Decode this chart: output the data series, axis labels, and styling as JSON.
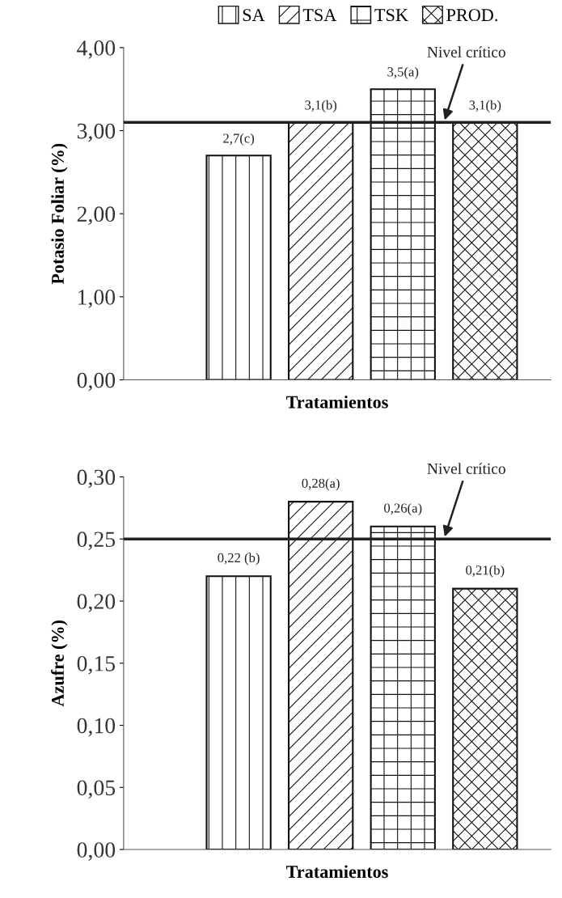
{
  "chart_data": [
    {
      "type": "bar",
      "ylabel": "Potasio Foliar (%)",
      "xlabel": "Tratamientos",
      "categories": [
        "SA",
        "TSA",
        "TSK",
        "PROD."
      ],
      "values": [
        2.7,
        3.1,
        3.5,
        3.1
      ],
      "colors": [
        "#111111",
        "#111111",
        "#111111",
        "#111111"
      ],
      "value_labels": [
        "2,7(c)",
        "3,1(b)",
        "3,5(a)",
        "3,1(b)"
      ],
      "ylim": [
        0,
        4
      ],
      "yticks": [
        {
          "value": 0,
          "label": "0,00"
        },
        {
          "value": 1,
          "label": "1,00"
        },
        {
          "value": 2,
          "label": "2,00"
        },
        {
          "value": 3,
          "label": "3,00"
        },
        {
          "value": 4,
          "label": "4,00"
        }
      ],
      "ref_lines": [
        {
          "axis": "y",
          "value": 3.1,
          "label": "Nivel crítico",
          "color": "#222222"
        }
      ],
      "legend": "top",
      "grid": false,
      "tick_labels": "y"
    },
    {
      "type": "bar",
      "ylabel": "Azufre (%)",
      "xlabel": "Tratamientos",
      "categories": [
        null,
        null,
        null,
        null
      ],
      "values": [
        0.22,
        0.28,
        0.26,
        0.21
      ],
      "colors": [
        "#111111",
        "#111111",
        "#111111",
        "#111111"
      ],
      "value_labels": [
        "0,22 (b)",
        "0,28(a)",
        "0,26(a)",
        "0,21(b)"
      ],
      "ylim": [
        0,
        0.3
      ],
      "yticks": [
        {
          "value": 0,
          "label": "0,00"
        },
        {
          "value": 0.05,
          "label": "0,05"
        },
        {
          "value": 0.1,
          "label": "0,10"
        },
        {
          "value": 0.15,
          "label": "0,15"
        },
        {
          "value": 0.2,
          "label": "0,20"
        },
        {
          "value": 0.25,
          "label": "0,25"
        },
        {
          "value": 0.3,
          "label": "0,30"
        }
      ],
      "ref_lines": [
        {
          "axis": "y",
          "value": 0.25,
          "label": "Nivel crítico",
          "color": "#222222"
        }
      ],
      "grid": false,
      "tick_labels": "y"
    }
  ]
}
